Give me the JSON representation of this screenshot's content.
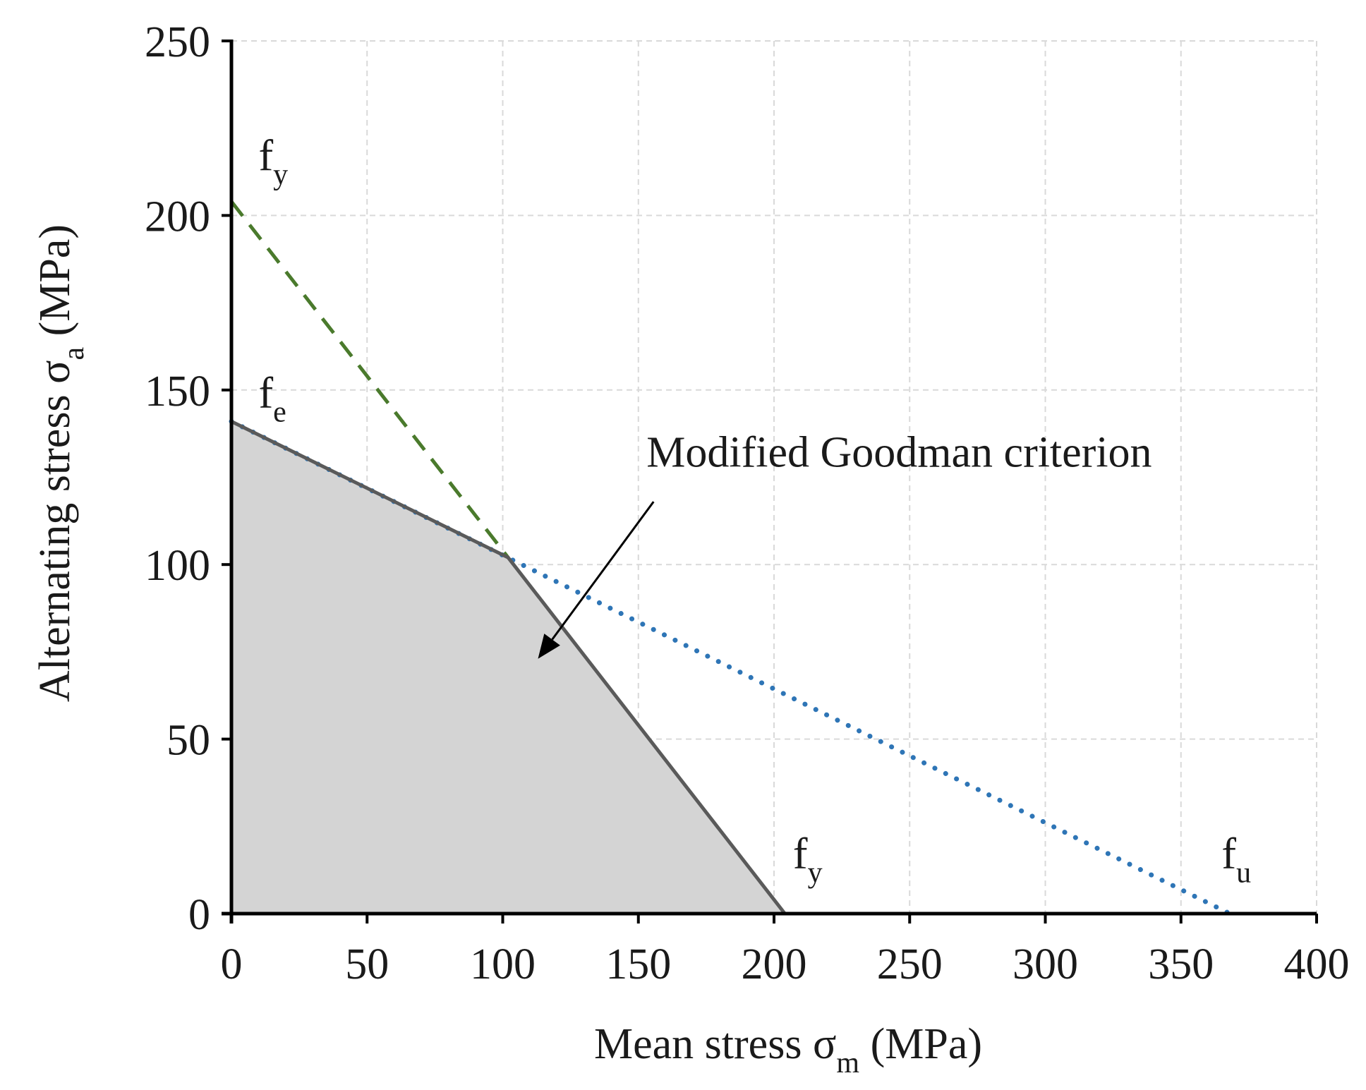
{
  "chart_data": {
    "type": "line",
    "xlabel": {
      "text": "Mean stress σ",
      "sub": "m",
      "unit": " (MPa)"
    },
    "ylabel": {
      "text": "Alternating stress σ",
      "sub": "a",
      "unit": " (MPa)"
    },
    "xlim": [
      0,
      400
    ],
    "ylim": [
      0,
      250
    ],
    "xticks": [
      "0",
      "50",
      "100",
      "150",
      "200",
      "250",
      "300",
      "350",
      "400"
    ],
    "yticks": [
      "0",
      "50",
      "100",
      "150",
      "200",
      "250"
    ],
    "grid": true,
    "legend": "none",
    "safe_region": {
      "x": [
        0,
        0,
        102,
        204,
        0
      ],
      "y": [
        0,
        141,
        102,
        0,
        0
      ]
    },
    "series": [
      {
        "style": "solid",
        "color": "#5a5a5a",
        "x": [
          0,
          102,
          204
        ],
        "y": [
          141,
          102,
          0
        ]
      },
      {
        "style": "dashed",
        "color": "#4a7a2c",
        "x": [
          0,
          102
        ],
        "y": [
          204,
          102
        ]
      },
      {
        "style": "dotted",
        "color": "#2e75b6",
        "x": [
          0,
          368
        ],
        "y": [
          141,
          0
        ]
      }
    ],
    "point_labels": [
      {
        "text": "f",
        "sub": "y",
        "x": 10,
        "y": 213
      },
      {
        "text": "f",
        "sub": "e",
        "x": 10,
        "y": 145
      },
      {
        "text": "f",
        "sub": "y",
        "x": 207,
        "y": 13
      },
      {
        "text": "f",
        "sub": "u",
        "x": 365,
        "y": 13
      }
    ],
    "annotation": {
      "text": "Modified Goodman criterion",
      "text_x": 153,
      "text_y": 128,
      "arrow_from": [
        153,
        118
      ],
      "arrow_to": [
        113,
        73
      ]
    }
  }
}
